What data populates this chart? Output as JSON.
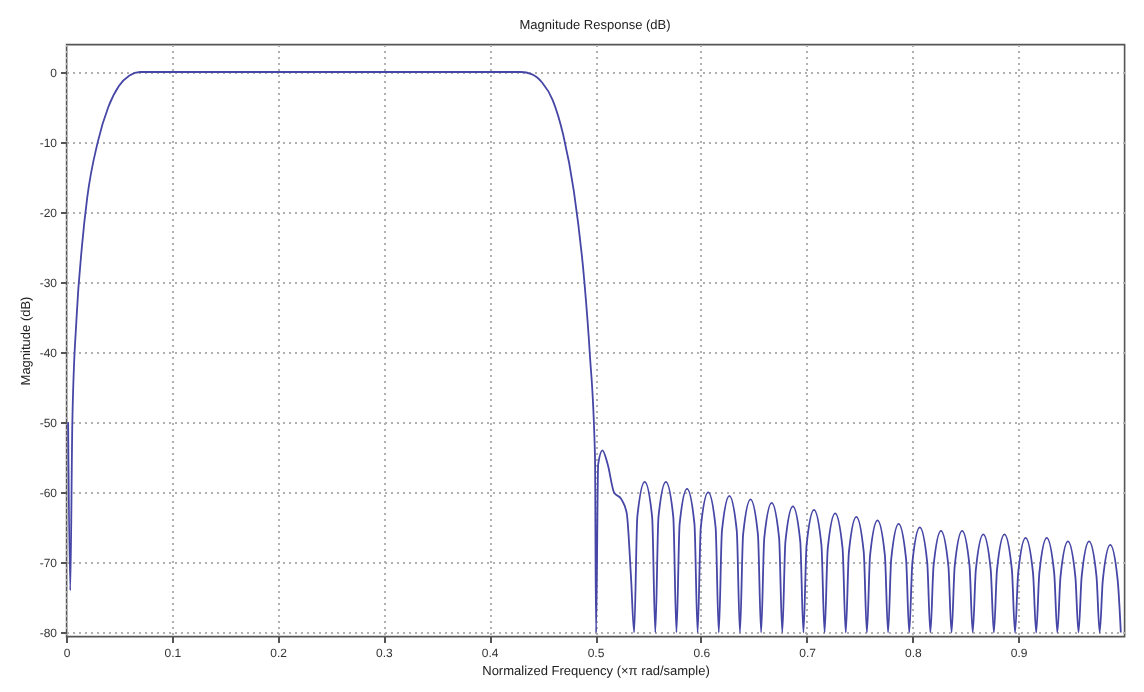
{
  "chart_data": {
    "type": "line",
    "title": "Magnitude Response (dB)",
    "xlabel": "Normalized Frequency (×π rad/sample)",
    "ylabel": "Magnitude (dB)",
    "xlim": [
      0,
      1
    ],
    "ylim": [
      -80.5,
      4
    ],
    "xticks": [
      0,
      0.1,
      0.2,
      0.3,
      0.4,
      0.5,
      0.6,
      0.7,
      0.8,
      0.9
    ],
    "yticks": [
      0,
      -10,
      -20,
      -30,
      -40,
      -50,
      -60,
      -70,
      -80
    ],
    "grid": true,
    "series": [
      {
        "color": "#4646a6",
        "x": [
          0.002,
          0.004,
          0.006,
          0.01,
          0.015,
          0.02,
          0.03,
          0.04,
          0.05,
          0.06,
          0.07,
          0.2,
          0.43,
          0.44,
          0.45,
          0.46,
          0.47,
          0.48,
          0.49,
          0.495,
          0.5,
          0.501,
          0.503,
          0.507,
          0.512,
          0.518,
          0.525,
          0.53,
          0.534,
          0.537,
          0.54,
          0.547,
          0.554,
          0.557,
          0.56,
          0.567,
          0.574,
          0.577,
          0.58,
          0.587,
          0.594,
          0.597,
          0.6,
          0.607,
          0.614,
          0.617,
          0.62,
          0.627,
          0.634,
          0.637,
          0.64,
          0.647,
          0.654,
          0.657,
          0.66,
          0.667,
          0.674,
          0.677,
          0.68,
          0.687,
          0.694,
          0.697,
          0.7,
          0.707,
          0.714,
          0.717,
          0.72,
          0.727,
          0.734,
          0.737,
          0.74,
          0.747,
          0.754,
          0.757,
          0.76,
          0.767,
          0.774,
          0.777,
          0.78,
          0.787,
          0.794,
          0.797,
          0.8,
          0.807,
          0.814,
          0.817,
          0.82,
          0.827,
          0.834,
          0.837,
          0.84,
          0.847,
          0.854,
          0.857,
          0.86,
          0.867,
          0.874,
          0.877,
          0.88,
          0.887,
          0.894,
          0.897,
          0.9,
          0.907,
          0.914,
          0.917,
          0.92,
          0.927,
          0.934,
          0.937,
          0.94,
          0.947,
          0.954,
          0.957,
          0.96,
          0.967,
          0.974,
          0.977,
          0.98,
          0.987,
          0.994,
          0.997
        ],
        "values": [
          -50,
          -74,
          -50,
          -35,
          -25,
          -18,
          -10,
          -5,
          -2,
          -0.5,
          0,
          0,
          0,
          -0.3,
          -1.5,
          -4,
          -9,
          -17,
          -30,
          -40,
          -55,
          -80,
          -56,
          -54,
          -56,
          -60,
          -61,
          -63,
          -72,
          -80,
          -63.5,
          -58.5,
          -63.5,
          -80,
          -63.5,
          -58.5,
          -63.5,
          -80,
          -64.5,
          -59.5,
          -64.5,
          -80,
          -65,
          -60,
          -65,
          -80,
          -65.5,
          -60.5,
          -65.5,
          -80,
          -66,
          -61,
          -66,
          -80,
          -66.5,
          -61.5,
          -66.5,
          -80,
          -67,
          -62,
          -67,
          -80,
          -67.5,
          -62.5,
          -67.5,
          -80,
          -68,
          -63,
          -68,
          -80,
          -68.5,
          -63.5,
          -68.5,
          -80,
          -69,
          -64,
          -69,
          -80,
          -69.5,
          -64.5,
          -69.5,
          -80,
          -70,
          -65,
          -70,
          -80,
          -70.5,
          -65.5,
          -70.5,
          -80,
          -70.5,
          -65.5,
          -70.5,
          -80,
          -71,
          -66,
          -71,
          -80,
          -71,
          -66,
          -71,
          -80,
          -71.5,
          -66.5,
          -71.5,
          -80,
          -71.5,
          -66.5,
          -71.5,
          -80,
          -72,
          -67,
          -72,
          -80,
          -72,
          -67,
          -72,
          -80,
          -72.5,
          -67.5,
          -72.5,
          -80
        ]
      }
    ]
  }
}
